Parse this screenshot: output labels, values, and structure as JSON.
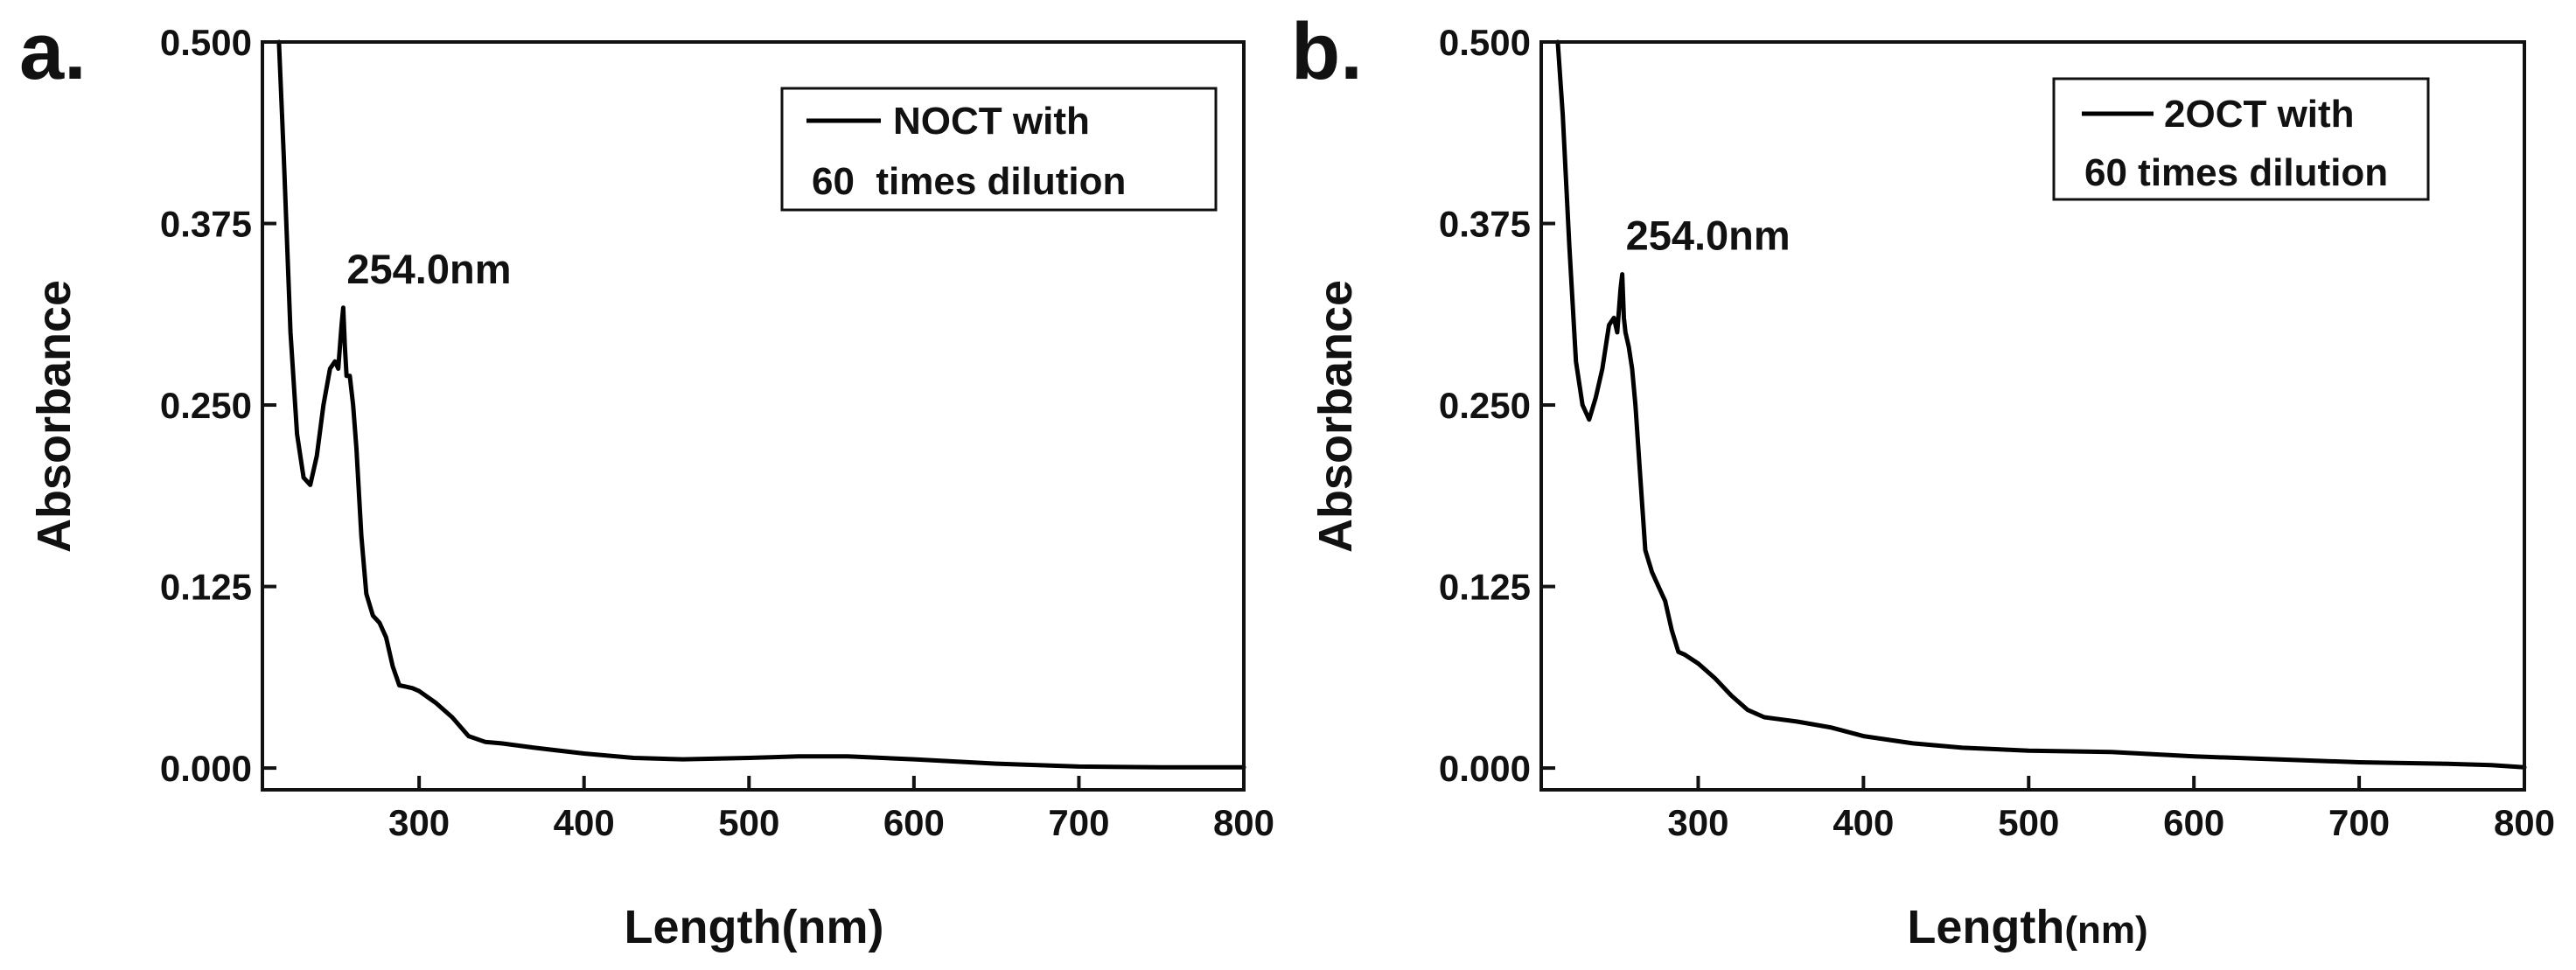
{
  "chart_data": [
    {
      "panel_label": "a.",
      "type": "line",
      "xlabel": "Length(nm)",
      "xlabel_parts": [
        "Length",
        "(nm)"
      ],
      "ylabel": "Absorbance",
      "xlim": [
        205,
        800
      ],
      "ylim": [
        -0.015,
        0.5
      ],
      "xticks": [
        300,
        400,
        500,
        600,
        700,
        800
      ],
      "xtick_labels": [
        "300",
        "400",
        "500",
        "600",
        "700",
        "800"
      ],
      "yticks": [
        0.0,
        0.125,
        0.25,
        0.375,
        0.5
      ],
      "ytick_labels": [
        "0.000",
        "0.125",
        "0.250",
        "0.375",
        "0.500"
      ],
      "legend": [
        "NOCT with",
        "60  times dilution"
      ],
      "legend_position": "top-right",
      "annotation": {
        "text": "254.0nm",
        "x": 254,
        "y": 0.317
      },
      "series": [
        {
          "name": "NOCT with 60 times dilution",
          "x": [
            215,
            218,
            222,
            226,
            230,
            234,
            238,
            242,
            246,
            249,
            251,
            253,
            254,
            255,
            256,
            258,
            260,
            262,
            265,
            268,
            272,
            276,
            280,
            284,
            288,
            292,
            296,
            300,
            310,
            320,
            330,
            340,
            350,
            370,
            400,
            430,
            460,
            500,
            530,
            560,
            600,
            650,
            700,
            750,
            800
          ],
          "y": [
            0.5,
            0.42,
            0.3,
            0.23,
            0.2,
            0.195,
            0.215,
            0.25,
            0.275,
            0.28,
            0.275,
            0.305,
            0.317,
            0.29,
            0.27,
            0.27,
            0.25,
            0.22,
            0.16,
            0.12,
            0.105,
            0.1,
            0.09,
            0.07,
            0.057,
            0.056,
            0.055,
            0.053,
            0.045,
            0.035,
            0.022,
            0.018,
            0.017,
            0.014,
            0.01,
            0.007,
            0.006,
            0.007,
            0.008,
            0.008,
            0.006,
            0.003,
            0.001,
            0.0005,
            0.0005
          ]
        }
      ]
    },
    {
      "panel_label": "b.",
      "type": "line",
      "xlabel": "Length(nm)",
      "xlabel_parts": [
        "Length",
        "(nm)"
      ],
      "ylabel": "Absorbance",
      "xlim": [
        205,
        800
      ],
      "ylim": [
        -0.015,
        0.5
      ],
      "xticks": [
        300,
        400,
        500,
        600,
        700,
        800
      ],
      "xtick_labels": [
        "300",
        "400",
        "500",
        "600",
        "700",
        "800"
      ],
      "yticks": [
        0.0,
        0.125,
        0.25,
        0.375,
        0.5
      ],
      "ytick_labels": [
        "0.000",
        "0.125",
        "0.250",
        "0.375",
        "0.500"
      ],
      "legend": [
        "2OCT with",
        "60 times dilution"
      ],
      "legend_position": "top-right",
      "annotation": {
        "text": "254.0nm",
        "x": 254,
        "y": 0.34
      },
      "series": [
        {
          "name": "2OCT with 60 times dilution",
          "x": [
            215,
            218,
            222,
            226,
            230,
            234,
            238,
            242,
            246,
            249,
            251,
            253,
            254,
            255,
            256,
            258,
            260,
            262,
            265,
            268,
            272,
            276,
            280,
            284,
            288,
            292,
            296,
            300,
            310,
            320,
            330,
            340,
            360,
            380,
            400,
            430,
            460,
            500,
            550,
            600,
            650,
            700,
            750,
            780,
            800
          ],
          "y": [
            0.5,
            0.45,
            0.36,
            0.28,
            0.25,
            0.24,
            0.255,
            0.275,
            0.305,
            0.31,
            0.3,
            0.33,
            0.34,
            0.31,
            0.3,
            0.29,
            0.275,
            0.25,
            0.2,
            0.15,
            0.135,
            0.125,
            0.115,
            0.095,
            0.08,
            0.078,
            0.075,
            0.072,
            0.062,
            0.05,
            0.04,
            0.035,
            0.032,
            0.028,
            0.022,
            0.017,
            0.014,
            0.012,
            0.011,
            0.008,
            0.006,
            0.004,
            0.003,
            0.002,
            0.0005
          ]
        }
      ]
    }
  ]
}
